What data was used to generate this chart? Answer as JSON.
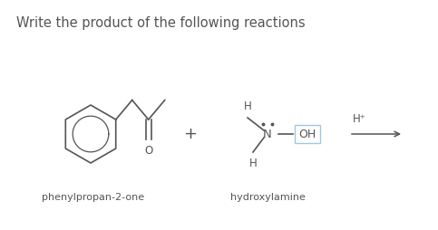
{
  "title": "Write the product of the following reactions",
  "title_fontsize": 10.5,
  "bg_color": "#ffffff",
  "text_color": "#555555",
  "label1": "phenylpropan-2-one",
  "label2": "hydroxylamine",
  "figsize": [
    4.83,
    2.54
  ],
  "dpi": 100,
  "oh_box_color": "#a0c8e0"
}
